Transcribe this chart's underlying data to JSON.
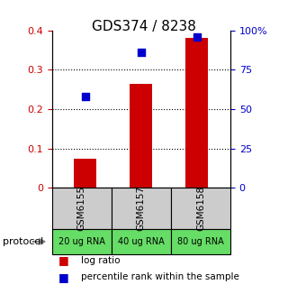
{
  "title": "GDS374 / 8238",
  "samples": [
    "GSM6155",
    "GSM6157",
    "GSM6158"
  ],
  "protocols": [
    "20 ug RNA",
    "40 ug RNA",
    "80 ug RNA"
  ],
  "log_ratios": [
    0.075,
    0.265,
    0.38
  ],
  "percentile_ranks": [
    58,
    86,
    96
  ],
  "ylim_left": [
    0,
    0.4
  ],
  "ylim_right": [
    0,
    100
  ],
  "yticks_left": [
    0,
    0.1,
    0.2,
    0.3,
    0.4
  ],
  "yticks_right": [
    0,
    25,
    50,
    75,
    100
  ],
  "ytick_labels_left": [
    "0",
    "0.1",
    "0.2",
    "0.3",
    "0.4"
  ],
  "ytick_labels_right": [
    "0",
    "25",
    "50",
    "75",
    "100%"
  ],
  "bar_color": "#cc0000",
  "scatter_color": "#0000cc",
  "gray_bg": "#cccccc",
  "green_bg": "#66dd66",
  "protocol_label": "protocol",
  "legend_bar_label": "log ratio",
  "legend_scatter_label": "percentile rank within the sample",
  "title_fontsize": 11,
  "tick_fontsize": 8,
  "bar_width": 0.4
}
